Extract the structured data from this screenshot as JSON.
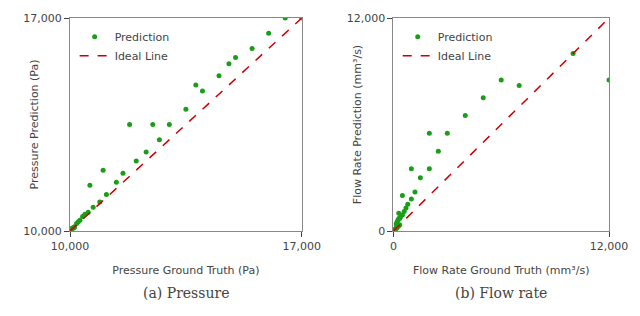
{
  "chart_data": [
    {
      "type": "scatter",
      "title": "(a) Pressure",
      "x_label": "Pressure Ground Truth (Pa)",
      "y_label": "Pressure Prediction (Pa)",
      "xlim": [
        10000,
        17000
      ],
      "ylim": [
        10000,
        17000
      ],
      "xticks": [
        {
          "value": 10000,
          "label": "10,000"
        },
        {
          "value": 17000,
          "label": "17,000"
        }
      ],
      "yticks": [
        {
          "value": 10000,
          "label": "10,000"
        },
        {
          "value": 17000,
          "label": "17,000"
        }
      ],
      "grid": false,
      "legend": "upper left",
      "series": [
        {
          "name": "Prediction",
          "type": "scatter",
          "marker": "circle",
          "color": "#1a9e1a",
          "x": [
            10000,
            10010,
            10020,
            10025,
            10030,
            10035,
            10040,
            10045,
            10050,
            10055,
            10060,
            10070,
            10080,
            10090,
            10100,
            10110,
            10120,
            10130,
            10140,
            10200,
            10250,
            10300,
            10380,
            10450,
            10550,
            10700,
            10900,
            11100,
            11400,
            11600,
            12000,
            12300,
            12700,
            13000,
            13500,
            14000,
            14500,
            15000,
            15500,
            16000,
            16500,
            17000,
            11000,
            12500,
            13800,
            14800,
            10600,
            11800
          ],
          "values": [
            10010,
            10020,
            10020,
            10020,
            10030,
            10035,
            10035,
            10050,
            10060,
            10060,
            10070,
            10080,
            10100,
            10100,
            10110,
            10110,
            10120,
            10130,
            10130,
            10250,
            10300,
            10350,
            10480,
            10550,
            10620,
            10780,
            10950,
            11200,
            11600,
            11900,
            12300,
            12600,
            13000,
            13500,
            14000,
            14600,
            15100,
            15700,
            16000,
            16500,
            17000,
            17000,
            12000,
            13500,
            14800,
            15500,
            11500,
            13500
          ]
        },
        {
          "name": "Ideal Line",
          "type": "line",
          "line_style": "dashed",
          "color": "#cc0000",
          "x": [
            10000,
            17000
          ],
          "values": [
            10000,
            17000
          ]
        }
      ]
    },
    {
      "type": "scatter",
      "title": "(b) Flow rate",
      "x_label": "Flow Rate Ground Truth (mm³/s)",
      "y_label": "Flow Rate Prediction (mm³/s)",
      "xlim": [
        0,
        12000
      ],
      "ylim": [
        0,
        12000
      ],
      "xticks": [
        0,
        {
          "value": 12000,
          "label": "12,000"
        }
      ],
      "yticks": [
        0,
        {
          "value": 12000,
          "label": "12,000"
        }
      ],
      "grid": false,
      "legend": "upper left",
      "series": [
        {
          "name": "Prediction",
          "type": "scatter",
          "marker": "circle",
          "color": "#1a9e1a",
          "x": [
            0,
            10,
            20,
            30,
            40,
            50,
            60,
            80,
            100,
            120,
            150,
            180,
            200,
            250,
            300,
            350,
            150,
            200,
            250,
            300,
            350,
            400,
            500,
            600,
            700,
            800,
            1000,
            1200,
            1500,
            2000,
            2500,
            3000,
            4000,
            5000,
            6000,
            7000,
            10000,
            12000,
            300,
            500,
            1000,
            2000
          ],
          "values": [
            0,
            10,
            20,
            30,
            40,
            50,
            60,
            80,
            100,
            120,
            150,
            180,
            200,
            250,
            300,
            350,
            400,
            500,
            600,
            700,
            700,
            800,
            900,
            1100,
            1300,
            1500,
            1800,
            2200,
            3000,
            3500,
            4500,
            5500,
            6500,
            7500,
            8500,
            8200,
            10000,
            8500,
            1000,
            2000,
            3500,
            5500
          ]
        },
        {
          "name": "Ideal Line",
          "type": "line",
          "line_style": "dashed",
          "color": "#cc0000",
          "x": [
            0,
            12000
          ],
          "values": [
            0,
            12000
          ]
        }
      ]
    }
  ]
}
